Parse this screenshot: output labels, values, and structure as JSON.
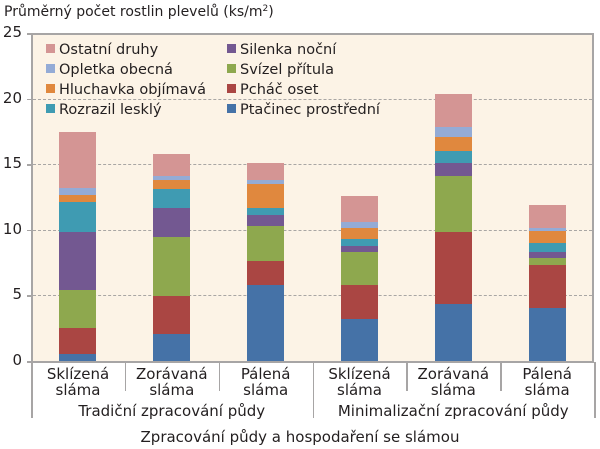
{
  "chart_data": {
    "type": "bar",
    "stacked": true,
    "title": "",
    "ylabel": "Průměrný počet rostlin plevelů (ks/m²)",
    "ylabel_parts": {
      "text": "Průměrný počet rostlin plevelů (ks/m",
      "sup": "2",
      "end": ")"
    },
    "xlabel": "Zpracování půdy a hospodaření se slámou",
    "ylim": [
      0,
      25
    ],
    "yticks": [
      0,
      5,
      10,
      15,
      20,
      25
    ],
    "grid": "horizontal dashed",
    "legend_position": "top-left inside",
    "categories": [
      "Sklízená sláma",
      "Zorávaná sláma",
      "Pálená sláma",
      "Sklízená sláma",
      "Zorávaná sláma",
      "Pálená sláma"
    ],
    "category_lines": [
      [
        "Sklízená",
        "sláma"
      ],
      [
        "Zorávaná",
        "sláma"
      ],
      [
        "Pálená",
        "sláma"
      ],
      [
        "Sklízená",
        "sláma"
      ],
      [
        "Zorávaná",
        "sláma"
      ],
      [
        "Pálená",
        "sláma"
      ]
    ],
    "groups": [
      {
        "label": "Tradiční zpracování půdy",
        "categories": [
          0,
          1,
          2
        ]
      },
      {
        "label": "Minimalizační zpracování půdy",
        "categories": [
          3,
          4,
          5
        ]
      }
    ],
    "series": [
      {
        "name": "Ptačinec prostřední",
        "color": "#4572a7",
        "values": [
          0.6,
          2.1,
          5.9,
          3.3,
          4.4,
          4.1
        ]
      },
      {
        "name": "Pcháč oset",
        "color": "#aa4643",
        "values": [
          2.0,
          2.9,
          1.8,
          2.55,
          5.5,
          3.3
        ]
      },
      {
        "name": "Svízel přítula",
        "color": "#8ea84e",
        "values": [
          2.9,
          4.55,
          2.7,
          2.5,
          4.25,
          0.5
        ]
      },
      {
        "name": "Silenka noční",
        "color": "#735891",
        "values": [
          4.4,
          2.2,
          0.8,
          0.5,
          1.05,
          0.5
        ]
      },
      {
        "name": "Rozrazil lesklý",
        "color": "#3f9bb2",
        "values": [
          2.3,
          1.45,
          0.55,
          0.5,
          0.9,
          0.65
        ]
      },
      {
        "name": "Hluchavka objímavá",
        "color": "#e0883e",
        "values": [
          0.5,
          0.7,
          1.8,
          0.9,
          1.05,
          0.95
        ]
      },
      {
        "name": "Opletka obecná",
        "color": "#94abd6",
        "values": [
          0.6,
          0.27,
          0.3,
          0.4,
          0.75,
          0.25
        ]
      },
      {
        "name": "Ostatní druhy",
        "color": "#d49594",
        "values": [
          4.2,
          1.65,
          1.35,
          2.0,
          2.5,
          1.75
        ]
      }
    ],
    "totals_approx": [
      17.5,
      15.8,
      15.2,
      12.65,
      20.4,
      12.0
    ]
  },
  "legend": {
    "column1": [
      "Ostatní druhy",
      "Opletka obecná",
      "Hluchavka objímavá",
      "Rozrazil lesklý"
    ],
    "column2": [
      "Silenka noční",
      "Svízel přítula",
      "Pcháč oset",
      "Ptačinec prostřední"
    ]
  },
  "colors": {
    "plot_background": "#fcf3e6",
    "axis": "#a7a5a5",
    "grid": "#a9a6a4",
    "text": "#231f20"
  }
}
